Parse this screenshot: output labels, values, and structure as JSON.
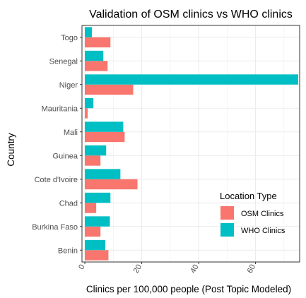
{
  "chart_data": {
    "type": "bar",
    "orientation": "horizontal",
    "title": "Validation of OSM clinics vs WHO clinics",
    "xlabel": "Clinics per 100,000 people (Post Topic Modeled)",
    "ylabel": "Country",
    "categories": [
      "Togo",
      "Senegal",
      "Niger",
      "Mauritania",
      "Mali",
      "Guinea",
      "Cote d'Ivoire",
      "Chad",
      "Burkina Faso",
      "Benin"
    ],
    "series": [
      {
        "name": "OSM Clinics",
        "color": "#F8766D",
        "values": [
          9.0,
          8.0,
          17.0,
          1.0,
          14.0,
          5.5,
          18.5,
          4.0,
          5.5,
          8.3
        ]
      },
      {
        "name": "WHO Clinics",
        "color": "#00BFC4",
        "values": [
          2.5,
          6.5,
          75.0,
          3.0,
          13.5,
          7.5,
          12.5,
          9.0,
          8.8,
          7.2
        ]
      }
    ],
    "xlim": [
      -1,
      75.5
    ],
    "xticks": [
      0,
      20,
      40,
      60
    ],
    "xtick_rotation": -60,
    "grid": true,
    "legend": {
      "title": "Location Type",
      "position": "bottom-right"
    }
  }
}
